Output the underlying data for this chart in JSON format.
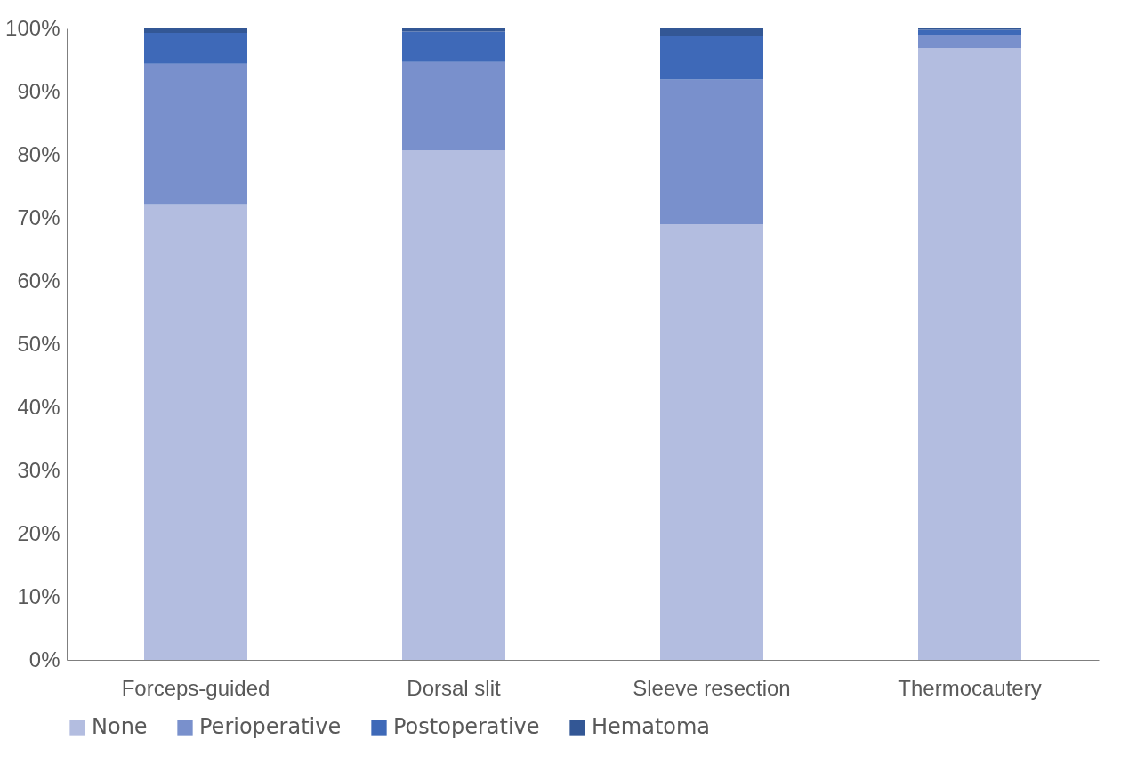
{
  "chart_data": {
    "type": "bar",
    "stacked": true,
    "categories": [
      "Forceps-guided",
      "Dorsal slit",
      "Sleeve resection",
      "Thermocautery"
    ],
    "series": [
      {
        "name": "None",
        "color": "#b3bde0",
        "values": [
          72.2,
          80.7,
          69.0,
          96.9
        ]
      },
      {
        "name": "Perioperative",
        "color": "#7990cc",
        "values": [
          22.2,
          14.0,
          22.9,
          2.1
        ]
      },
      {
        "name": "Postoperative",
        "color": "#3e69b8",
        "values": [
          4.9,
          4.8,
          6.9,
          0.8
        ]
      },
      {
        "name": "Hematoma",
        "color": "#335795",
        "values": [
          0.7,
          0.5,
          1.2,
          0.2
        ]
      }
    ],
    "ylim": [
      0,
      100
    ],
    "yticks": [
      {
        "value": 0,
        "label": "0%"
      },
      {
        "value": 10,
        "label": "10%"
      },
      {
        "value": 20,
        "label": "20%"
      },
      {
        "value": 30,
        "label": "30%"
      },
      {
        "value": 40,
        "label": "40%"
      },
      {
        "value": 50,
        "label": "50%"
      },
      {
        "value": 60,
        "label": "60%"
      },
      {
        "value": 70,
        "label": "70%"
      },
      {
        "value": 80,
        "label": "80%"
      },
      {
        "value": 90,
        "label": "90%"
      },
      {
        "value": 100,
        "label": "100%"
      }
    ],
    "grid": false,
    "legend": "bottom"
  }
}
